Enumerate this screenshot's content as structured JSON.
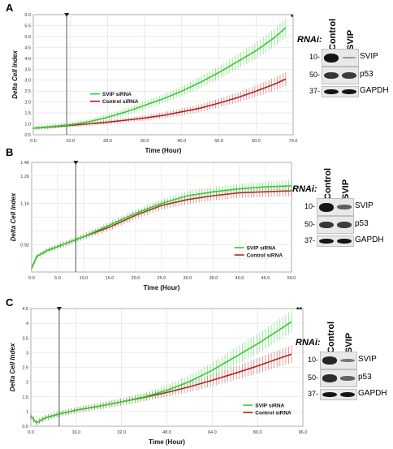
{
  "panels": [
    {
      "label": "A",
      "chart_data": {
        "type": "line",
        "xlabel": "Time (Hour)",
        "ylabel": "Delta Cell Index",
        "xlim": [
          0,
          70
        ],
        "ylim": [
          0.5,
          6.0
        ],
        "xticks": [
          "0.0",
          "10.0",
          "20.0",
          "30.0",
          "40.0",
          "50.0",
          "60.0",
          "70.0"
        ],
        "yticks": [
          "0.5",
          "1.0",
          "1.5",
          "2.0",
          "2.5",
          "3.0",
          "3.5",
          "4.0",
          "4.5",
          "5.0",
          "5.5",
          "6.0"
        ],
        "marker_x": 9,
        "annotation": "*",
        "grid": true,
        "legend_position": "center-left",
        "series": [
          {
            "name": "SVIP siRNA",
            "color": "#33cc33",
            "x": [
              0,
              5,
              10,
              15,
              20,
              25,
              30,
              35,
              40,
              45,
              50,
              55,
              60,
              65,
              68
            ],
            "y": [
              0.8,
              0.88,
              0.96,
              1.1,
              1.3,
              1.55,
              1.85,
              2.15,
              2.5,
              2.9,
              3.35,
              3.85,
              4.35,
              4.95,
              5.4
            ],
            "err": [
              0.1,
              0.1,
              0.1,
              0.12,
              0.14,
              0.16,
              0.18,
              0.2,
              0.22,
              0.26,
              0.3,
              0.34,
              0.38,
              0.42,
              0.45
            ]
          },
          {
            "name": "Control siRNA",
            "color": "#b22222",
            "x": [
              0,
              5,
              10,
              15,
              20,
              25,
              30,
              35,
              40,
              45,
              50,
              55,
              60,
              65,
              68
            ],
            "y": [
              0.8,
              0.86,
              0.93,
              1.0,
              1.08,
              1.17,
              1.27,
              1.39,
              1.55,
              1.72,
              1.95,
              2.2,
              2.5,
              2.82,
              3.05
            ],
            "err": [
              0.08,
              0.08,
              0.08,
              0.09,
              0.1,
              0.11,
              0.12,
              0.14,
              0.16,
              0.18,
              0.2,
              0.23,
              0.26,
              0.3,
              0.32
            ]
          }
        ]
      },
      "blot": {
        "rnai_label": "RNAi:",
        "lanes": [
          "Control",
          "SVIP"
        ],
        "rows": [
          {
            "protein": "SVIP",
            "mw": "10-",
            "bands": [
              1.0,
              0.2
            ]
          },
          {
            "protein": "p53",
            "mw": "50-",
            "bands": [
              0.8,
              0.75
            ]
          },
          {
            "protein": "GAPDH",
            "mw": "37-",
            "bands": [
              1.0,
              1.0
            ]
          }
        ]
      }
    },
    {
      "label": "B",
      "chart_data": {
        "type": "line",
        "xlabel": "Time (Hour)",
        "ylabel": "Delta Cell Index",
        "xlim": [
          0,
          50
        ],
        "ylim": [
          0.86,
          1.42
        ],
        "xticks": [
          "0.0",
          "5.0",
          "10.0",
          "15.0",
          "20.0",
          "25.0",
          "30.0",
          "35.0",
          "40.0",
          "45.0",
          "50.0"
        ],
        "yticks": [
          "",
          "",
          "0.92",
          "",
          "",
          "1.16",
          "",
          "1.26",
          "1.40"
        ],
        "marker_x": 8.5,
        "annotation": "",
        "grid": true,
        "legend_position": "bottom-center",
        "series": [
          {
            "name": "SVIP siRNA",
            "color": "#33cc33",
            "x": [
              0,
              1,
              3,
              5,
              8,
              10,
              15,
              20,
              25,
              30,
              35,
              40,
              45,
              50
            ],
            "y": [
              0.88,
              0.94,
              0.97,
              0.99,
              1.02,
              1.04,
              1.1,
              1.16,
              1.21,
              1.25,
              1.27,
              1.285,
              1.295,
              1.3
            ],
            "err": [
              0.01,
              0.01,
              0.012,
              0.013,
              0.014,
              0.015,
              0.018,
              0.02,
              0.022,
              0.024,
              0.025,
              0.026,
              0.027,
              0.028
            ]
          },
          {
            "name": "Control siRNA",
            "color": "#b22222",
            "x": [
              0,
              1,
              3,
              5,
              8,
              10,
              15,
              20,
              25,
              30,
              35,
              40,
              45,
              50
            ],
            "y": [
              0.88,
              0.94,
              0.97,
              0.99,
              1.02,
              1.04,
              1.09,
              1.15,
              1.2,
              1.23,
              1.25,
              1.265,
              1.27,
              1.275
            ],
            "err": [
              0.01,
              0.01,
              0.012,
              0.013,
              0.014,
              0.015,
              0.018,
              0.02,
              0.022,
              0.024,
              0.025,
              0.026,
              0.027,
              0.028
            ]
          }
        ]
      },
      "blot": {
        "rnai_label": "RNAi:",
        "lanes": [
          "Control",
          "SVIP"
        ],
        "rows": [
          {
            "protein": "SVIP",
            "mw": "10-",
            "bands": [
              1.0,
              0.55
            ]
          },
          {
            "protein": "p53",
            "mw": "50-",
            "bands": [
              0.8,
              0.75
            ]
          },
          {
            "protein": "GAPDH",
            "mw": "37-",
            "bands": [
              1.0,
              1.0
            ]
          }
        ]
      }
    },
    {
      "label": "C",
      "chart_data": {
        "type": "line",
        "xlabel": "Time (Hour)",
        "ylabel": "Delta Cell Index",
        "xlim": [
          0,
          96
        ],
        "ylim": [
          0.5,
          4.5
        ],
        "xticks": [
          "0.0",
          "16.0",
          "32.0",
          "48.0",
          "64.0",
          "80.0",
          "96.0"
        ],
        "yticks": [
          "0.5",
          "1",
          "1.5",
          "2",
          "2.5",
          "3",
          "3.5",
          "4",
          "4.5"
        ],
        "marker_x": 10,
        "annotation": "**",
        "grid": true,
        "legend_position": "bottom-right",
        "series": [
          {
            "name": "SVIP siRNA",
            "color": "#33cc33",
            "x": [
              0,
              2,
              5,
              10,
              16,
              24,
              32,
              40,
              48,
              56,
              64,
              72,
              80,
              88,
              92
            ],
            "y": [
              0.85,
              0.62,
              0.78,
              0.92,
              1.05,
              1.18,
              1.33,
              1.5,
              1.72,
              2.02,
              2.4,
              2.85,
              3.3,
              3.8,
              4.05
            ],
            "err": [
              0.1,
              0.1,
              0.1,
              0.1,
              0.1,
              0.11,
              0.12,
              0.14,
              0.18,
              0.22,
              0.26,
              0.3,
              0.33,
              0.36,
              0.38
            ]
          },
          {
            "name": "Control siRNA",
            "color": "#b22222",
            "x": [
              0,
              2,
              5,
              10,
              16,
              24,
              32,
              40,
              48,
              56,
              64,
              72,
              80,
              88,
              92
            ],
            "y": [
              0.85,
              0.62,
              0.78,
              0.92,
              1.05,
              1.18,
              1.33,
              1.48,
              1.65,
              1.84,
              2.06,
              2.3,
              2.55,
              2.82,
              2.95
            ],
            "err": [
              0.1,
              0.1,
              0.1,
              0.1,
              0.1,
              0.11,
              0.12,
              0.13,
              0.15,
              0.18,
              0.2,
              0.23,
              0.26,
              0.28,
              0.3
            ]
          }
        ]
      },
      "blot": {
        "rnai_label": "RNAi:",
        "lanes": [
          "Control",
          "SVIP"
        ],
        "rows": [
          {
            "protein": "SVIP",
            "mw": "10-",
            "bands": [
              0.9,
              0.4
            ]
          },
          {
            "protein": "p53",
            "mw": "50-",
            "bands": [
              0.85,
              0.5
            ]
          },
          {
            "protein": "GAPDH",
            "mw": "37-",
            "bands": [
              1.0,
              1.0
            ]
          }
        ]
      }
    }
  ]
}
